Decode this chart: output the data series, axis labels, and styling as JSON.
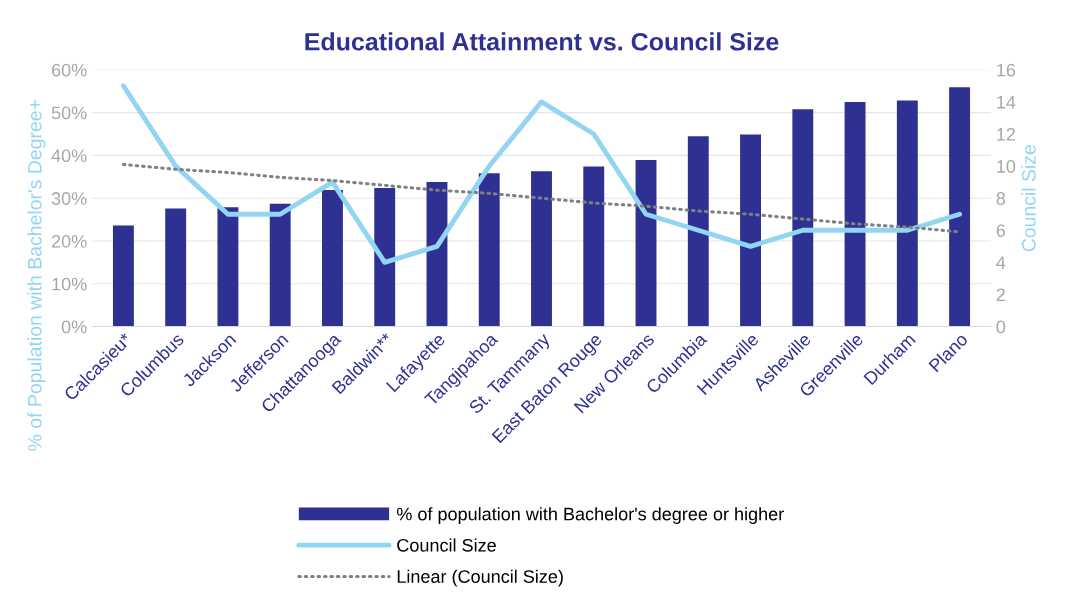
{
  "chart_data": {
    "type": "bar",
    "title": "Educational Attainment vs. Council Size",
    "ylabel": "% of Population with Bachelor's Degree+",
    "y2label": "Council Size",
    "categories": [
      "Calcasieu*",
      "Columbus",
      "Jackson",
      "Jefferson",
      "Chattanooga",
      "Baldwin**",
      "Lafayette",
      "Tangipahoa",
      "St. Tammany",
      "East Baton Rouge",
      "New Orleans",
      "Columbia",
      "Huntsville",
      "Asheville",
      "Greenville",
      "Durham",
      "Plano"
    ],
    "series": [
      {
        "name": "% of population with Bachelor's degree or higher",
        "color": "#2e3192",
        "values": [
          23.6,
          27.6,
          27.9,
          28.7,
          31.9,
          32.4,
          33.8,
          35.8,
          36.3,
          37.4,
          38.9,
          44.5,
          44.9,
          50.8,
          52.5,
          52.8,
          55.9
        ]
      },
      {
        "name": "Council Size",
        "type": "line",
        "axis": "y2",
        "color": "#92d5f3",
        "marker": "none",
        "line_style": "solid",
        "values": [
          15,
          10,
          7,
          7,
          9,
          4,
          5,
          10,
          14,
          12,
          7,
          6,
          5,
          6,
          6,
          6,
          7
        ]
      },
      {
        "name": "Linear (Council Size)",
        "type": "line",
        "axis": "y2",
        "color": "#808080",
        "marker": "none",
        "line_style": "dotted",
        "values": [
          10.1,
          9.8,
          9.6,
          9.3,
          9.1,
          8.8,
          8.5,
          8.3,
          8.0,
          7.7,
          7.5,
          7.2,
          7.0,
          6.7,
          6.4,
          6.2,
          5.9
        ]
      }
    ],
    "ylim": [
      0,
      60
    ],
    "yticks": [
      {
        "value": 0,
        "label": "0%"
      },
      {
        "value": 10,
        "label": "10%"
      },
      {
        "value": 20,
        "label": "20%"
      },
      {
        "value": 30,
        "label": "30%"
      },
      {
        "value": 40,
        "label": "40%"
      },
      {
        "value": 50,
        "label": "50%"
      },
      {
        "value": 60,
        "label": "60%"
      }
    ],
    "y2lim": [
      0,
      16
    ],
    "y2ticks": [
      0,
      2,
      4,
      6,
      8,
      10,
      12,
      14,
      16
    ],
    "grid": "y",
    "legend": "bottom"
  }
}
